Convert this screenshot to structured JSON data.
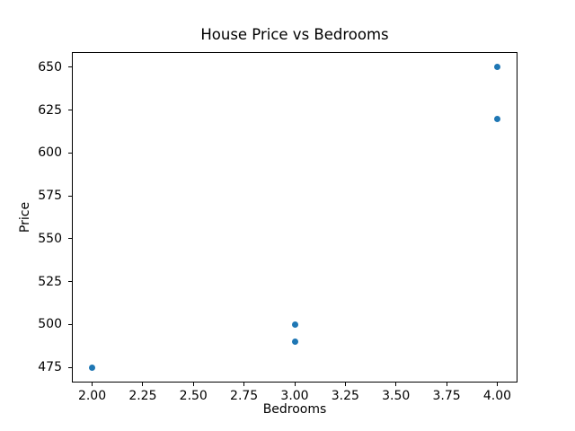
{
  "chart_data": {
    "type": "scatter",
    "title": "House Price vs Bedrooms",
    "xlabel": "Bedrooms",
    "ylabel": "Price",
    "points": [
      {
        "x": 2,
        "y": 475
      },
      {
        "x": 3,
        "y": 490
      },
      {
        "x": 3,
        "y": 500
      },
      {
        "x": 4,
        "y": 620
      },
      {
        "x": 4,
        "y": 650
      }
    ],
    "x_tick_labels": [
      "2.00",
      "2.25",
      "2.50",
      "2.75",
      "3.00",
      "3.25",
      "3.50",
      "3.75",
      "4.00"
    ],
    "x_tick_values": [
      2.0,
      2.25,
      2.5,
      2.75,
      3.0,
      3.25,
      3.5,
      3.75,
      4.0
    ],
    "y_tick_labels": [
      "475",
      "500",
      "525",
      "550",
      "575",
      "600",
      "625",
      "650"
    ],
    "y_tick_values": [
      475,
      500,
      525,
      550,
      575,
      600,
      625,
      650
    ],
    "xlim": [
      1.9,
      4.1
    ],
    "ylim": [
      466.25,
      658.75
    ],
    "grid": false,
    "legend": null,
    "marker_color": "#1f77b4",
    "spine_color": "#000000",
    "background_color": "#ffffff",
    "text_color": "#000000"
  }
}
